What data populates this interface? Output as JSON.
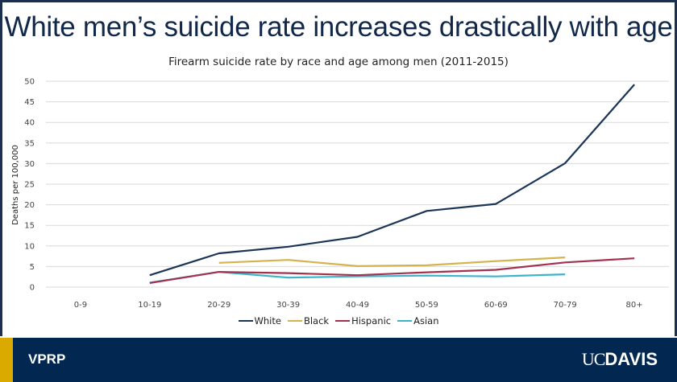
{
  "slide": {
    "title": "White men’s suicide rate increases drastically with age",
    "footer_left": "VPRP",
    "footer_logo_uc": "UC",
    "footer_logo_davis": "DAVIS"
  },
  "colors": {
    "navy": "#022851",
    "gold": "#daaa00"
  },
  "chart_data": {
    "type": "line",
    "title": "Firearm suicide rate by race and age among men (2011-2015)",
    "xlabel": "",
    "ylabel": "Deaths per 100,000",
    "ylim": [
      0,
      50
    ],
    "yticks": [
      0,
      5,
      10,
      15,
      20,
      25,
      30,
      35,
      40,
      45,
      50
    ],
    "grid": true,
    "legend_position": "bottom",
    "categories": [
      "0-9",
      "10-19",
      "20-29",
      "30-39",
      "40-49",
      "50-59",
      "60-69",
      "70-79",
      "80+"
    ],
    "series": [
      {
        "name": "White",
        "color": "#1a3556",
        "values": [
          null,
          2.9,
          8.2,
          9.8,
          12.2,
          18.5,
          20.2,
          30.1,
          49.2
        ]
      },
      {
        "name": "Black",
        "color": "#d4b24c",
        "values": [
          null,
          null,
          5.9,
          6.6,
          5.1,
          5.3,
          6.3,
          7.2,
          null
        ]
      },
      {
        "name": "Hispanic",
        "color": "#a3304f",
        "values": [
          null,
          1.0,
          3.7,
          3.4,
          2.9,
          3.6,
          4.2,
          6.0,
          7.0
        ]
      },
      {
        "name": "Asian",
        "color": "#3cb4c8",
        "values": [
          null,
          1.1,
          3.7,
          2.3,
          2.6,
          2.8,
          2.6,
          3.1,
          null
        ]
      }
    ]
  }
}
